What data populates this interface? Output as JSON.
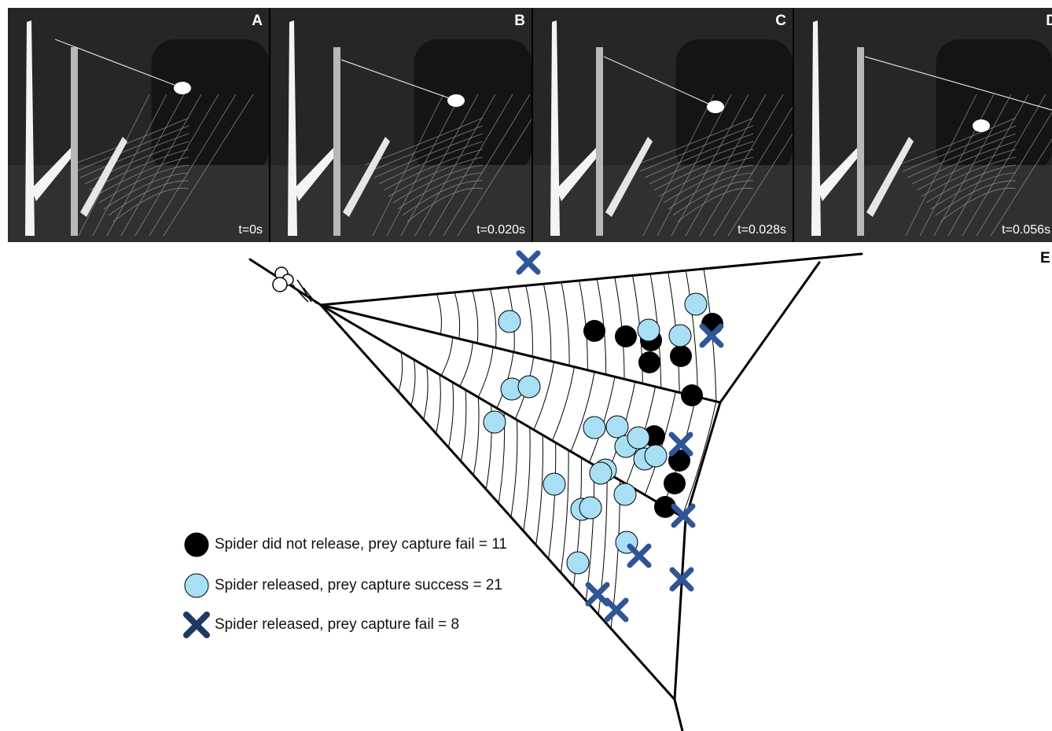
{
  "panels": [
    {
      "letter": "A",
      "time": "t=0s"
    },
    {
      "letter": "B",
      "time": "t=0.020s"
    },
    {
      "letter": "C",
      "time": "t=0.028s"
    },
    {
      "letter": "D",
      "time": "t=0.056s"
    }
  ],
  "diagram": {
    "letter": "E"
  },
  "legend": [
    {
      "marker": "black-circle",
      "label": "Spider did not release, prey capture fail = 11"
    },
    {
      "marker": "light-blue-circle",
      "label": "Spider released, prey capture success = 21"
    },
    {
      "marker": "blue-cross",
      "label": "Spider released, prey capture fail = 8"
    }
  ],
  "colors": {
    "fail_no_release": "#000000",
    "success_release": "#a8dff5",
    "fail_release": "#2f5597"
  }
}
